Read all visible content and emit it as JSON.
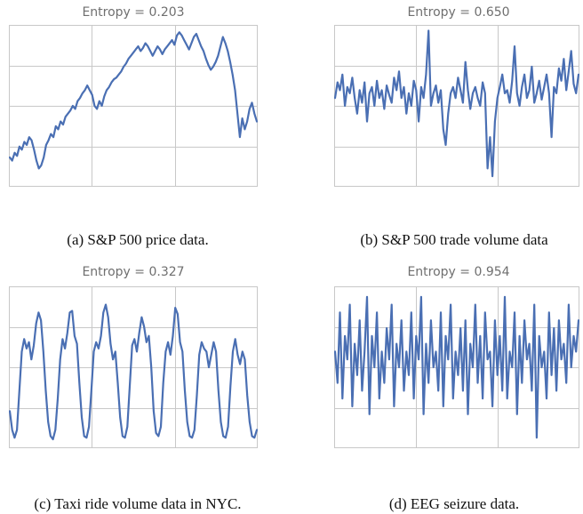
{
  "figure": {
    "line_color": "#4a6fb3",
    "grid_color": "#c8c8c8",
    "panels": [
      {
        "entropy_label": "Entropy = 0.203",
        "caption": "(a) S&P 500 price data."
      },
      {
        "entropy_label": "Entropy = 0.650",
        "caption": "(b) S&P 500 trade volume data"
      },
      {
        "entropy_label": "Entropy = 0.327",
        "caption": "(c) Taxi ride volume data in NYC."
      },
      {
        "entropy_label": "Entropy = 0.954",
        "caption": "(d) EEG seizure data."
      }
    ]
  },
  "chart_data": [
    {
      "type": "line",
      "title": "Entropy = 0.203",
      "xlabel": "",
      "ylabel": "",
      "grid": true,
      "ylim": [
        0,
        1
      ],
      "y": [
        0.17,
        0.15,
        0.2,
        0.18,
        0.24,
        0.22,
        0.27,
        0.25,
        0.3,
        0.28,
        0.22,
        0.15,
        0.1,
        0.12,
        0.17,
        0.25,
        0.28,
        0.32,
        0.3,
        0.37,
        0.35,
        0.4,
        0.38,
        0.43,
        0.45,
        0.47,
        0.5,
        0.48,
        0.53,
        0.55,
        0.58,
        0.6,
        0.63,
        0.6,
        0.57,
        0.5,
        0.48,
        0.53,
        0.5,
        0.56,
        0.6,
        0.62,
        0.65,
        0.67,
        0.68,
        0.7,
        0.72,
        0.75,
        0.77,
        0.8,
        0.82,
        0.84,
        0.86,
        0.88,
        0.85,
        0.87,
        0.9,
        0.88,
        0.85,
        0.82,
        0.85,
        0.88,
        0.86,
        0.83,
        0.86,
        0.88,
        0.9,
        0.92,
        0.89,
        0.95,
        0.97,
        0.95,
        0.92,
        0.89,
        0.86,
        0.9,
        0.94,
        0.96,
        0.92,
        0.88,
        0.85,
        0.8,
        0.76,
        0.73,
        0.75,
        0.78,
        0.82,
        0.88,
        0.94,
        0.9,
        0.85,
        0.78,
        0.7,
        0.6,
        0.45,
        0.3,
        0.42,
        0.35,
        0.4,
        0.48,
        0.52,
        0.45,
        0.4
      ]
    },
    {
      "type": "line",
      "title": "Entropy = 0.650",
      "xlabel": "",
      "ylabel": "",
      "grid": true,
      "ylim": [
        0,
        1
      ],
      "y": [
        0.55,
        0.65,
        0.6,
        0.7,
        0.5,
        0.62,
        0.58,
        0.68,
        0.55,
        0.45,
        0.6,
        0.52,
        0.65,
        0.4,
        0.58,
        0.62,
        0.5,
        0.66,
        0.55,
        0.6,
        0.48,
        0.63,
        0.57,
        0.52,
        0.68,
        0.6,
        0.72,
        0.55,
        0.62,
        0.45,
        0.58,
        0.5,
        0.66,
        0.6,
        0.4,
        0.62,
        0.55,
        0.7,
        0.98,
        0.5,
        0.58,
        0.63,
        0.52,
        0.6,
        0.35,
        0.25,
        0.45,
        0.58,
        0.62,
        0.55,
        0.68,
        0.6,
        0.52,
        0.78,
        0.6,
        0.48,
        0.58,
        0.62,
        0.55,
        0.5,
        0.65,
        0.58,
        0.1,
        0.3,
        0.05,
        0.4,
        0.55,
        0.62,
        0.7,
        0.58,
        0.6,
        0.52,
        0.66,
        0.88,
        0.58,
        0.5,
        0.62,
        0.7,
        0.55,
        0.6,
        0.75,
        0.52,
        0.58,
        0.66,
        0.54,
        0.62,
        0.7,
        0.58,
        0.3,
        0.62,
        0.58,
        0.74,
        0.66,
        0.8,
        0.6,
        0.72,
        0.85,
        0.64,
        0.58,
        0.7
      ]
    },
    {
      "type": "line",
      "title": "Entropy = 0.327",
      "xlabel": "",
      "ylabel": "",
      "grid": true,
      "ylim": [
        0,
        1
      ],
      "y": [
        0.22,
        0.1,
        0.05,
        0.1,
        0.35,
        0.6,
        0.68,
        0.62,
        0.66,
        0.55,
        0.64,
        0.78,
        0.85,
        0.8,
        0.6,
        0.35,
        0.15,
        0.06,
        0.04,
        0.1,
        0.3,
        0.55,
        0.68,
        0.62,
        0.72,
        0.85,
        0.86,
        0.7,
        0.65,
        0.4,
        0.18,
        0.06,
        0.05,
        0.12,
        0.35,
        0.6,
        0.66,
        0.62,
        0.7,
        0.85,
        0.9,
        0.82,
        0.65,
        0.55,
        0.6,
        0.4,
        0.18,
        0.06,
        0.05,
        0.12,
        0.38,
        0.64,
        0.68,
        0.6,
        0.72,
        0.82,
        0.76,
        0.66,
        0.7,
        0.5,
        0.22,
        0.08,
        0.06,
        0.12,
        0.4,
        0.6,
        0.66,
        0.58,
        0.7,
        0.88,
        0.84,
        0.66,
        0.6,
        0.35,
        0.15,
        0.06,
        0.05,
        0.1,
        0.32,
        0.58,
        0.66,
        0.62,
        0.6,
        0.5,
        0.58,
        0.66,
        0.6,
        0.35,
        0.15,
        0.06,
        0.05,
        0.12,
        0.38,
        0.6,
        0.68,
        0.58,
        0.52,
        0.6,
        0.55,
        0.32,
        0.15,
        0.06,
        0.05,
        0.1
      ]
    },
    {
      "type": "line",
      "title": "Entropy = 0.954",
      "xlabel": "",
      "ylabel": "",
      "grid": true,
      "ylim": [
        0,
        1
      ],
      "y": [
        0.6,
        0.4,
        0.85,
        0.3,
        0.7,
        0.55,
        0.9,
        0.25,
        0.65,
        0.45,
        0.8,
        0.35,
        0.6,
        0.95,
        0.2,
        0.7,
        0.5,
        0.85,
        0.3,
        0.6,
        0.4,
        0.75,
        0.55,
        0.9,
        0.25,
        0.65,
        0.5,
        0.8,
        0.35,
        0.6,
        0.45,
        0.85,
        0.3,
        0.7,
        0.55,
        0.95,
        0.2,
        0.65,
        0.4,
        0.8,
        0.5,
        0.6,
        0.35,
        0.85,
        0.25,
        0.7,
        0.55,
        0.9,
        0.3,
        0.6,
        0.45,
        0.75,
        0.35,
        0.8,
        0.2,
        0.65,
        0.5,
        0.9,
        0.4,
        0.7,
        0.3,
        0.85,
        0.55,
        0.6,
        0.25,
        0.8,
        0.45,
        0.7,
        0.35,
        0.95,
        0.3,
        0.6,
        0.5,
        0.85,
        0.2,
        0.7,
        0.4,
        0.8,
        0.55,
        0.65,
        0.35,
        0.9,
        0.05,
        0.7,
        0.5,
        0.6,
        0.3,
        0.85,
        0.45,
        0.75,
        0.35,
        0.8,
        0.55,
        0.65,
        0.4,
        0.9,
        0.5,
        0.7,
        0.6,
        0.8
      ]
    }
  ]
}
